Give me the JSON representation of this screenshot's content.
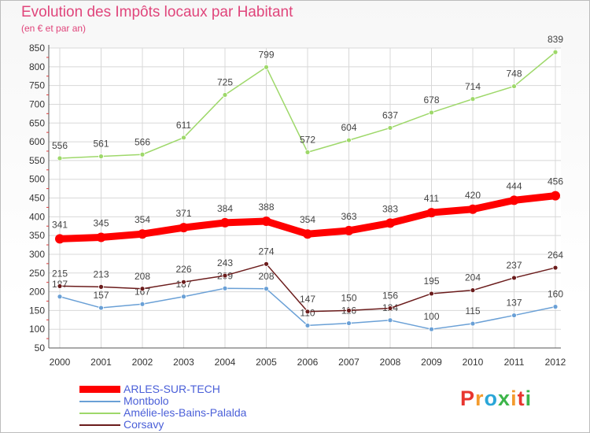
{
  "header": {
    "title": "Evolution des Impôts locaux par Habitant",
    "subtitle": "(en € et par an)"
  },
  "logo": {
    "text": "Proxiti"
  },
  "chart_data": {
    "type": "line",
    "x": [
      "2000",
      "2001",
      "2002",
      "2003",
      "2004",
      "2005",
      "2006",
      "2007",
      "2008",
      "2009",
      "2010",
      "2011",
      "2012"
    ],
    "ylim": [
      50,
      850
    ],
    "yticks": [
      50,
      100,
      150,
      200,
      250,
      300,
      350,
      400,
      450,
      500,
      550,
      600,
      650,
      700,
      750,
      800,
      850
    ],
    "grid": true,
    "legend_position": "bottom-left",
    "series": [
      {
        "name": "ARLES-SUR-TECH",
        "color": "#ff0000",
        "values": [
          341,
          345,
          354,
          371,
          384,
          388,
          354,
          363,
          383,
          411,
          420,
          444,
          456
        ]
      },
      {
        "name": "Montbolo",
        "color": "#6aa0d6",
        "values": [
          187,
          157,
          167,
          187,
          209,
          208,
          110,
          116,
          124,
          100,
          115,
          137,
          160
        ]
      },
      {
        "name": "Amélie-les-Bains-Palalda",
        "color": "#9ed86a",
        "values": [
          556,
          561,
          566,
          611,
          725,
          799,
          572,
          604,
          637,
          678,
          714,
          748,
          839
        ]
      },
      {
        "name": "Corsavy",
        "color": "#6b1c1c",
        "values": [
          215,
          213,
          208,
          226,
          243,
          274,
          147,
          150,
          156,
          195,
          204,
          237,
          264
        ]
      }
    ]
  }
}
